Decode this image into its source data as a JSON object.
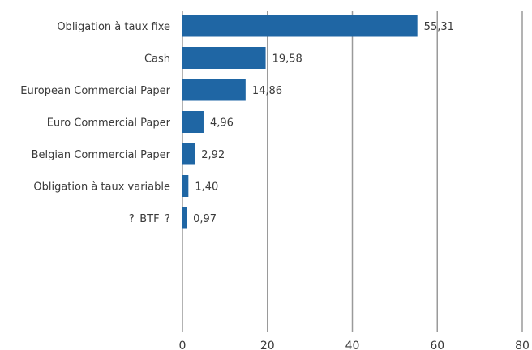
{
  "chart_data": {
    "type": "bar",
    "orientation": "horizontal",
    "categories": [
      "Obligation à taux fixe",
      "Cash",
      "European Commercial Paper",
      "Euro Commercial Paper",
      "Belgian Commercial Paper",
      "Obligation à taux variable",
      "?_BTF_?"
    ],
    "values": [
      55.31,
      19.58,
      14.86,
      4.96,
      2.92,
      1.4,
      0.97
    ],
    "value_labels": [
      "55,31",
      "19,58",
      "14,86",
      "4,96",
      "2,92",
      "1,40",
      "0,97"
    ],
    "xlim": [
      0,
      80
    ],
    "x_ticks": [
      0,
      20,
      40,
      60,
      80
    ],
    "x_tick_labels": [
      "0",
      "20",
      "40",
      "60",
      "80"
    ],
    "grid": "vertical",
    "legend": "none",
    "colors": {
      "bar": "#1f66a4",
      "grid": "#9a9a9a",
      "text": "#3a3a3a"
    }
  }
}
